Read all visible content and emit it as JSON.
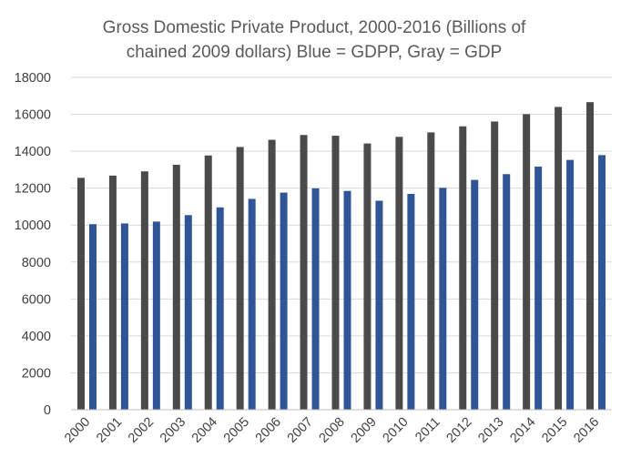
{
  "chart_data": {
    "type": "bar",
    "title_lines": [
      "Gross Domestic Private Product, 2000-2016 (Billions of",
      "chained 2009 dollars) Blue = GDPP, Gray = GDP"
    ],
    "categories": [
      "2000",
      "2001",
      "2002",
      "2003",
      "2004",
      "2005",
      "2006",
      "2007",
      "2008",
      "2009",
      "2010",
      "2011",
      "2012",
      "2013",
      "2014",
      "2015",
      "2016"
    ],
    "series": [
      {
        "values": [
          12560,
          12680,
          12910,
          13270,
          13770,
          14230,
          14620,
          14880,
          14840,
          14420,
          14780,
          15020,
          15350,
          15610,
          16010,
          16400,
          16660
        ]
      },
      {
        "values": [
          10050,
          10090,
          10190,
          10540,
          10960,
          11420,
          11760,
          11990,
          11850,
          11320,
          11690,
          12020,
          12450,
          12760,
          13170,
          13530,
          13790
        ]
      }
    ],
    "colors": [
      "#4a4a4a",
      "#2f5597"
    ],
    "y_ticks": [
      "0",
      "2000",
      "4000",
      "6000",
      "8000",
      "10000",
      "12000",
      "14000",
      "16000",
      "18000"
    ],
    "ylim": [
      0,
      18000
    ],
    "grid": true,
    "legend": "none"
  }
}
